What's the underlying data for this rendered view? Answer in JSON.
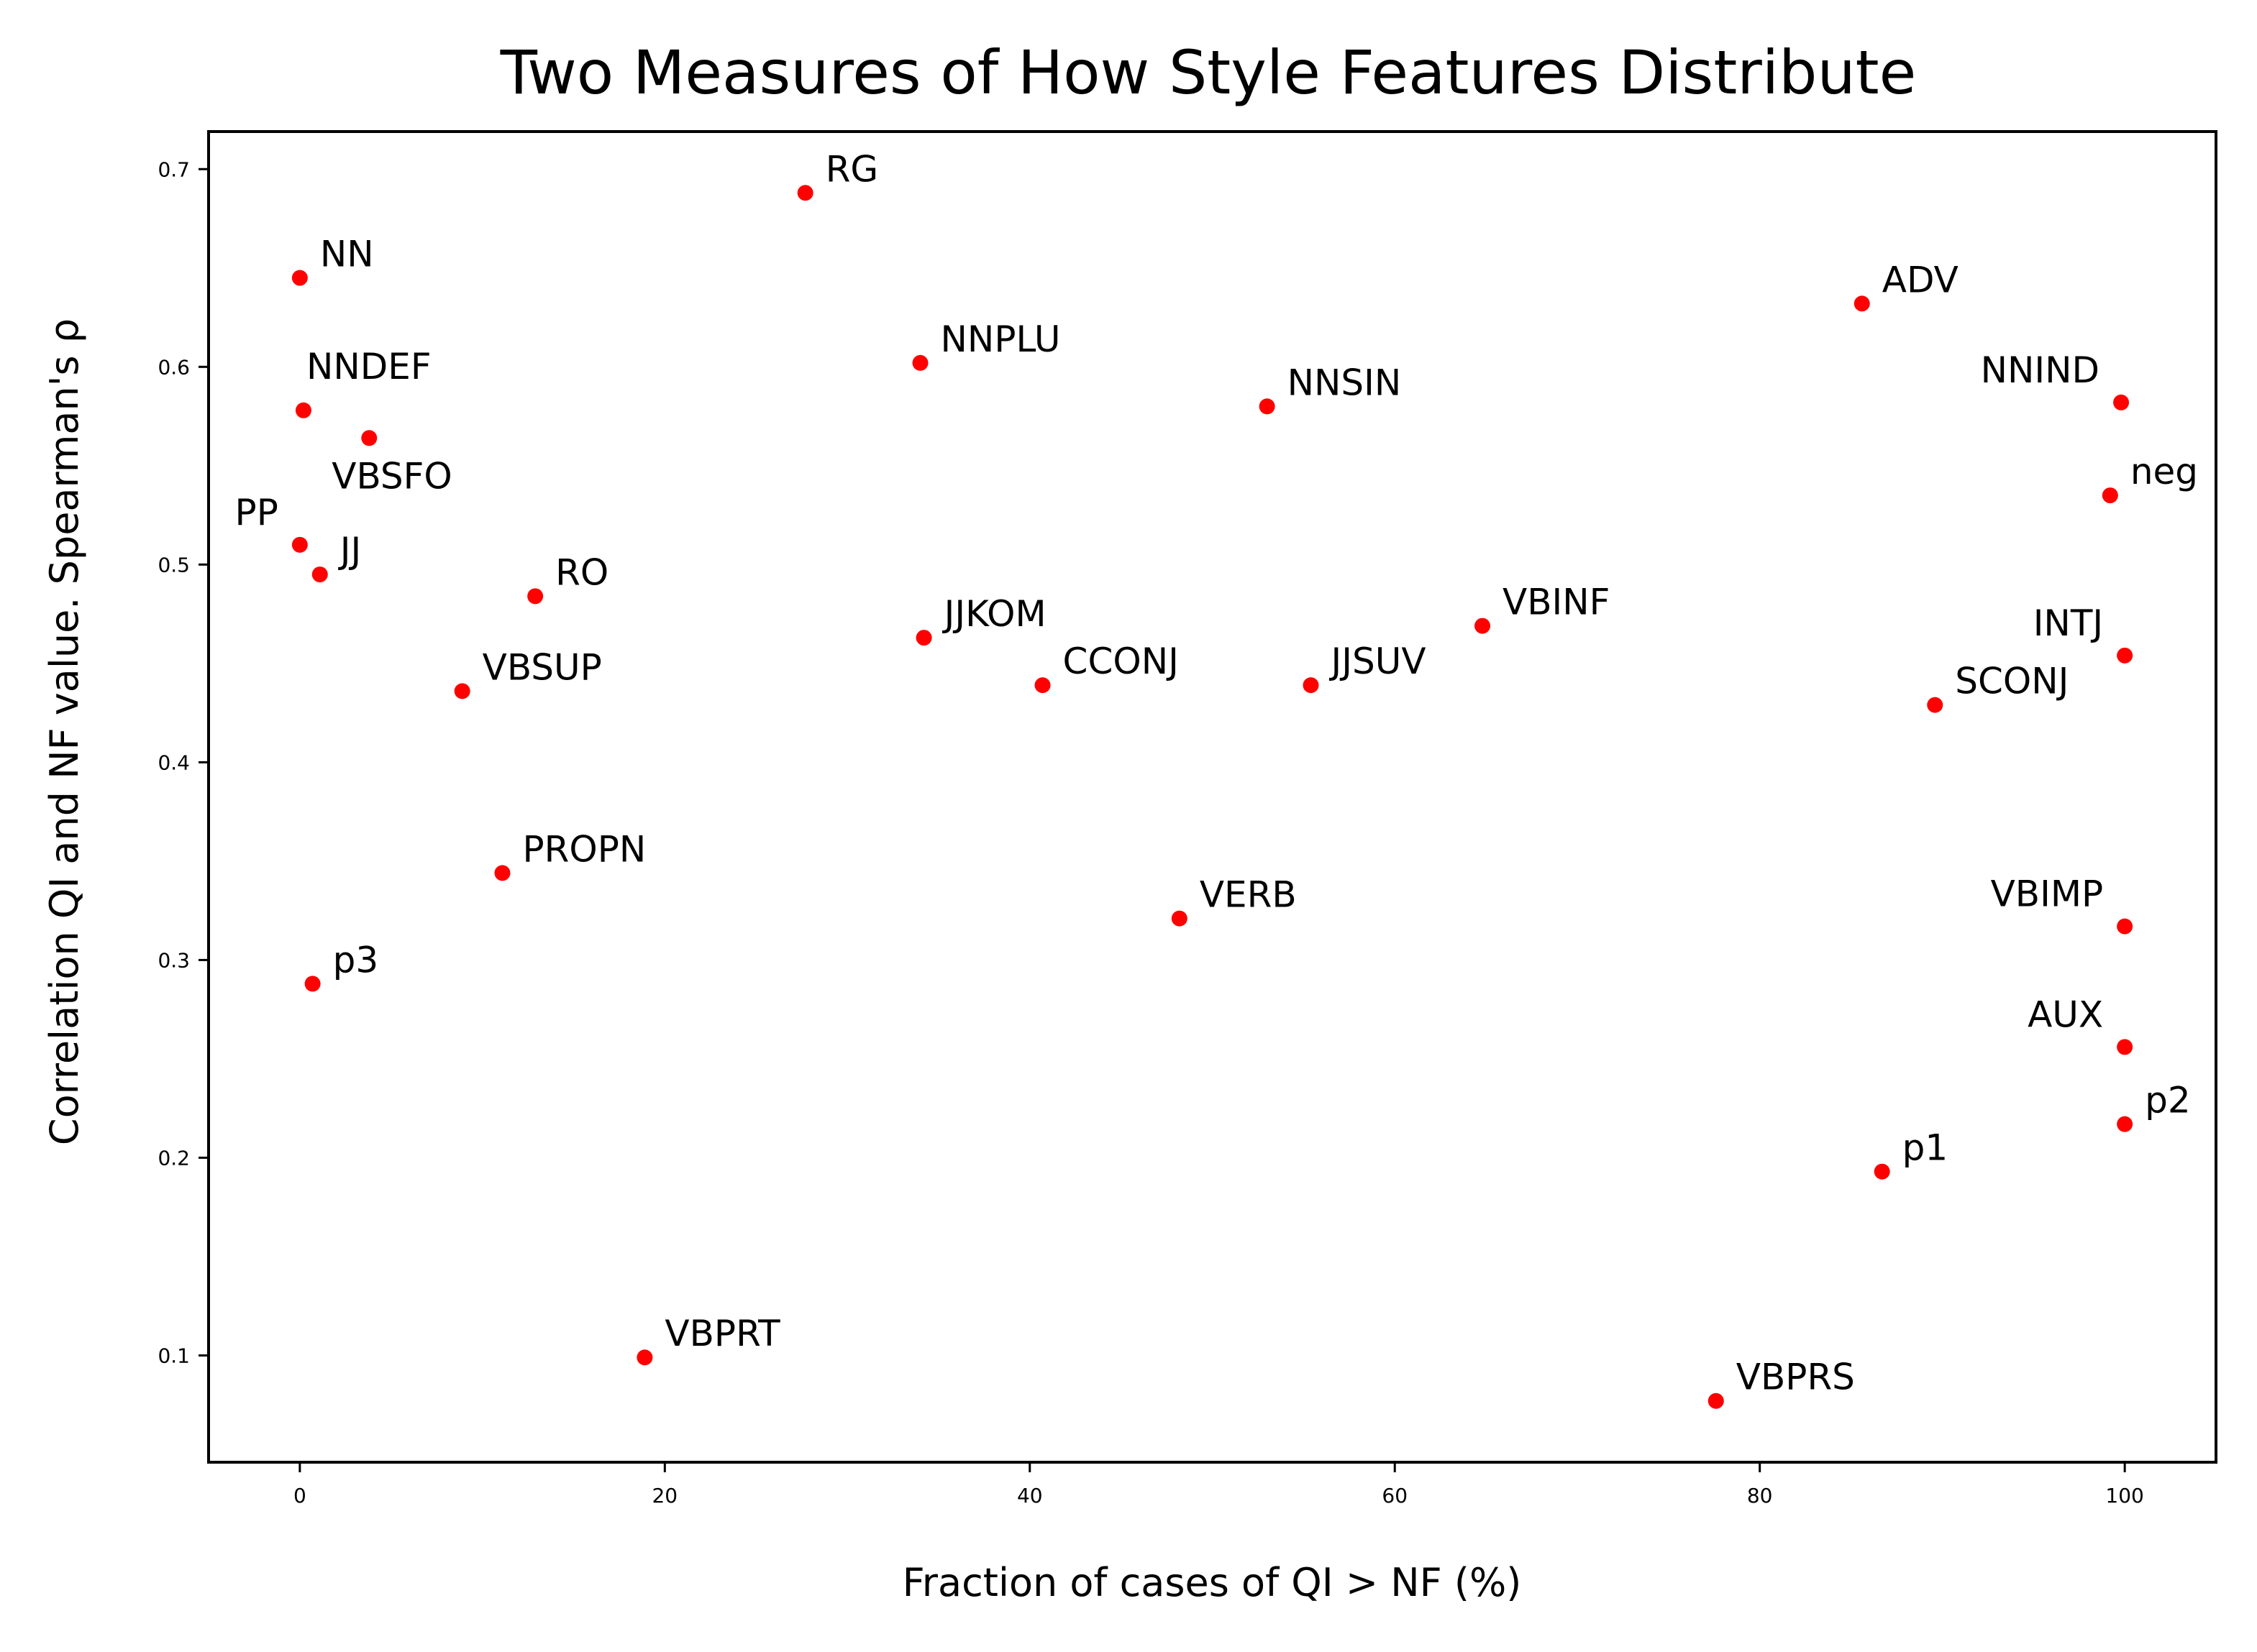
{
  "chart_data": {
    "type": "scatter",
    "title": "Two Measures of How Style Features Distribute",
    "xlabel": "Fraction of cases of QI > NF (%)",
    "ylabel": "Correlation QI and NF value. Spearman's ρ",
    "xlim": [
      -5,
      105
    ],
    "ylim": [
      0.046,
      0.719
    ],
    "xticks": [
      0,
      20,
      40,
      60,
      80,
      100
    ],
    "xtick_labels": [
      "0",
      "20",
      "40",
      "60",
      "80",
      "100"
    ],
    "yticks": [
      0.1,
      0.2,
      0.3,
      0.4,
      0.5,
      0.6,
      0.7
    ],
    "ytick_labels": [
      "0.1",
      "0.2",
      "0.3",
      "0.4",
      "0.5",
      "0.6",
      "0.7"
    ],
    "grid": false,
    "marker_color": "#ff0000",
    "points": [
      {
        "label": "RG",
        "x": 27.7,
        "y": 0.688,
        "anchor": "right-up"
      },
      {
        "label": "NN",
        "x": 0.0,
        "y": 0.645,
        "anchor": "right-up"
      },
      {
        "label": "ADV",
        "x": 85.6,
        "y": 0.632,
        "anchor": "right-up"
      },
      {
        "label": "NNPLU",
        "x": 34.0,
        "y": 0.602,
        "anchor": "right-up"
      },
      {
        "label": "NNSIN",
        "x": 53.0,
        "y": 0.58,
        "anchor": "right-up"
      },
      {
        "label": "NNIND",
        "x": 99.8,
        "y": 0.582,
        "anchor": "left-up"
      },
      {
        "label": "NNDEF",
        "x": 0.2,
        "y": 0.578,
        "anchor": "above"
      },
      {
        "label": "VBSFO",
        "x": 3.8,
        "y": 0.564,
        "anchor": "below"
      },
      {
        "label": "neg",
        "x": 99.2,
        "y": 0.535,
        "anchor": "right-up"
      },
      {
        "label": "PP",
        "x": 0.0,
        "y": 0.51,
        "anchor": "left-up"
      },
      {
        "label": "JJ",
        "x": 1.1,
        "y": 0.495,
        "anchor": "right-up"
      },
      {
        "label": "RO",
        "x": 12.9,
        "y": 0.484,
        "anchor": "right-up"
      },
      {
        "label": "VBINF",
        "x": 64.8,
        "y": 0.469,
        "anchor": "right-up"
      },
      {
        "label": "JJKOM",
        "x": 34.2,
        "y": 0.463,
        "anchor": "right-up"
      },
      {
        "label": "INTJ",
        "x": 100.0,
        "y": 0.454,
        "anchor": "left-up"
      },
      {
        "label": "CCONJ",
        "x": 40.7,
        "y": 0.439,
        "anchor": "right-up"
      },
      {
        "label": "JJSUV",
        "x": 55.4,
        "y": 0.439,
        "anchor": "right-up"
      },
      {
        "label": "VBSUP",
        "x": 8.9,
        "y": 0.436,
        "anchor": "right-up"
      },
      {
        "label": "SCONJ",
        "x": 89.6,
        "y": 0.429,
        "anchor": "right-up"
      },
      {
        "label": "PROPN",
        "x": 11.1,
        "y": 0.344,
        "anchor": "right-up"
      },
      {
        "label": "VERB",
        "x": 48.2,
        "y": 0.321,
        "anchor": "right-up"
      },
      {
        "label": "VBIMP",
        "x": 100.0,
        "y": 0.317,
        "anchor": "left-up"
      },
      {
        "label": "p3",
        "x": 0.7,
        "y": 0.288,
        "anchor": "right-up"
      },
      {
        "label": "AUX",
        "x": 100.0,
        "y": 0.256,
        "anchor": "left-up"
      },
      {
        "label": "p2",
        "x": 100.0,
        "y": 0.217,
        "anchor": "right-up"
      },
      {
        "label": "p1",
        "x": 86.7,
        "y": 0.193,
        "anchor": "right-up"
      },
      {
        "label": "VBPRT",
        "x": 18.9,
        "y": 0.099,
        "anchor": "right-up"
      },
      {
        "label": "VBPRS",
        "x": 77.6,
        "y": 0.077,
        "anchor": "right-up"
      }
    ]
  }
}
